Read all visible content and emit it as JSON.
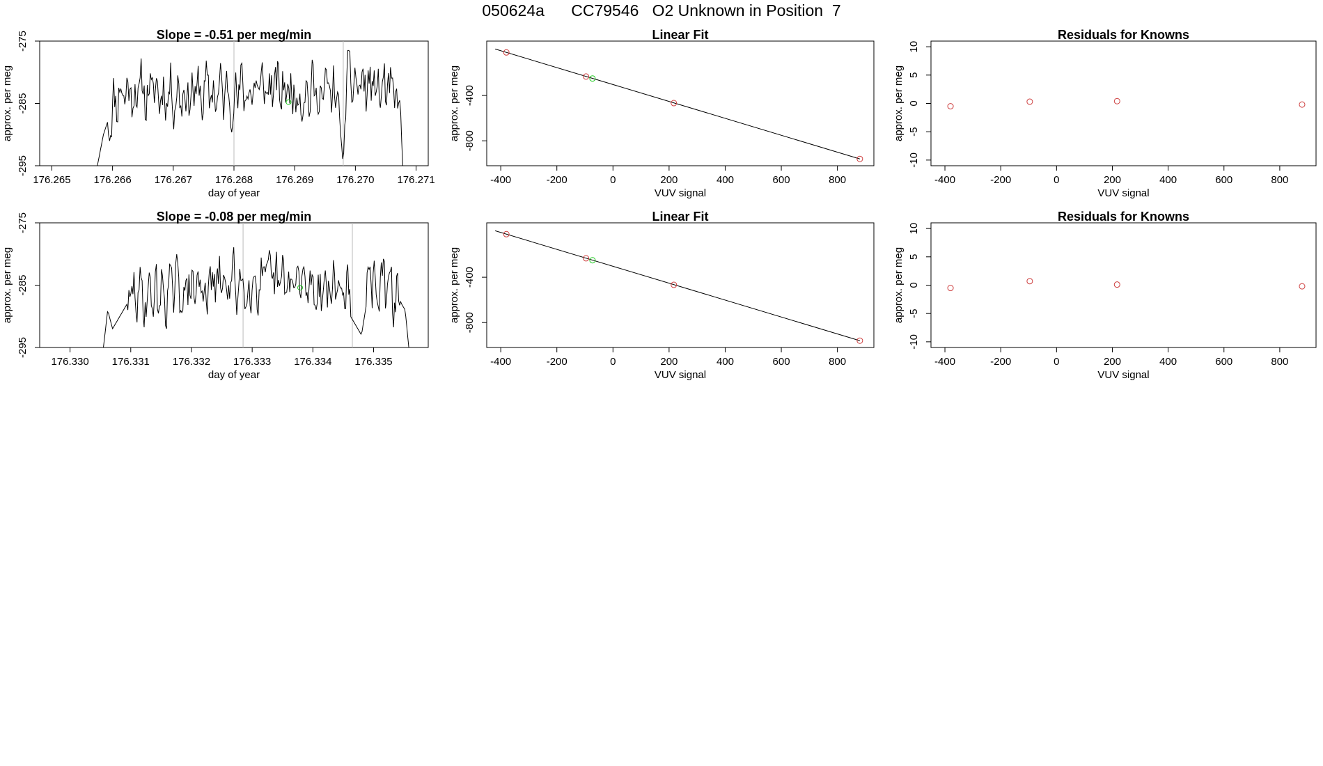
{
  "header": {
    "title": "050624a      CC79546   O2 Unknown in Position  7"
  },
  "colors": {
    "line": "#000000",
    "known": "#cd3c3c",
    "unknown": "#22cc22",
    "vline": "#bbbbbb",
    "frame": "#000000"
  },
  "chart_data": [
    {
      "type": "line",
      "title": "Slope =  -0.51  per meg/min",
      "xlabel": "day of year",
      "ylabel": "approx. per meg",
      "xlim": [
        176.2648,
        176.2712
      ],
      "ylim": [
        -295,
        -275
      ],
      "xticks": [
        176.265,
        176.266,
        176.267,
        176.268,
        176.269,
        176.27,
        176.271
      ],
      "xtick_labels": [
        "176.265",
        "176.266",
        "176.267",
        "176.268",
        "176.269",
        "176.270",
        "176.271"
      ],
      "yticks": [
        -275,
        -285,
        -295
      ],
      "ytick_labels": [
        "-275",
        "-285",
        "-295"
      ],
      "vlines": [
        176.268,
        176.2698
      ],
      "marker": {
        "x": 176.2689,
        "y": -284.8
      },
      "series": [
        {
          "name": "signal",
          "x_start": 176.26575,
          "x_end": 176.27078,
          "seed": 11,
          "anchors": [
            [
              176.26575,
              -295
            ],
            [
              176.26585,
              -290
            ],
            [
              176.2659,
              -288.5
            ],
            [
              176.2661,
              -283
            ],
            [
              176.268,
              -283.5
            ],
            [
              176.2684,
              -282.5
            ],
            [
              176.2697,
              -283.5
            ],
            [
              176.26975,
              -289
            ],
            [
              176.2698,
              -295
            ],
            [
              176.26985,
              -281.5
            ],
            [
              176.2705,
              -283
            ],
            [
              176.2707,
              -285
            ],
            [
              176.27075,
              -288
            ],
            [
              176.27078,
              -295
            ]
          ]
        }
      ]
    },
    {
      "type": "scatter",
      "title": "Linear Fit",
      "xlabel": "VUV signal",
      "ylabel": "approx. per meg",
      "xlim": [
        -450,
        930
      ],
      "ylim": [
        -1020,
        80
      ],
      "xticks": [
        -400,
        -200,
        0,
        200,
        400,
        600,
        800
      ],
      "xtick_labels": [
        "-400",
        "-200",
        "0",
        "200",
        "400",
        "600",
        "800"
      ],
      "yticks": [
        -400,
        -800
      ],
      "ytick_labels": [
        "-400",
        "-800"
      ],
      "fit_line": {
        "x": [
          -420,
          880
        ],
        "y": [
          10,
          -960
        ]
      },
      "known_points": {
        "x": [
          -380,
          -96,
          217,
          880
        ],
        "y": [
          -20,
          -233,
          -467,
          -960
        ]
      },
      "unknown_points": {
        "x": [
          -73
        ],
        "y": [
          -250
        ]
      }
    },
    {
      "type": "scatter",
      "title": "Residuals for Knowns",
      "xlabel": "VUV signal",
      "ylabel": "approx. per meg",
      "xlim": [
        -450,
        930
      ],
      "ylim": [
        -11,
        11
      ],
      "xticks": [
        -400,
        -200,
        0,
        200,
        400,
        600,
        800
      ],
      "xtick_labels": [
        "-400",
        "-200",
        "0",
        "200",
        "400",
        "600",
        "800"
      ],
      "yticks": [
        10,
        5,
        0,
        -5,
        -10
      ],
      "ytick_labels": [
        "10",
        "5",
        "0",
        "-5",
        "-10"
      ],
      "points": {
        "x": [
          -380,
          -96,
          217,
          880
        ],
        "y": [
          -0.5,
          0.3,
          0.4,
          -0.2
        ]
      }
    },
    {
      "type": "line",
      "title": "Slope =  -0.08  per meg/min",
      "xlabel": "day of year",
      "ylabel": "approx. per meg",
      "xlim": [
        176.3295,
        176.3359
      ],
      "ylim": [
        -295,
        -275
      ],
      "xticks": [
        176.33,
        176.331,
        176.332,
        176.333,
        176.334,
        176.335
      ],
      "xtick_labels": [
        "176.330",
        "176.331",
        "176.332",
        "176.333",
        "176.334",
        "176.335"
      ],
      "yticks": [
        -275,
        -285,
        -295
      ],
      "ytick_labels": [
        "-275",
        "-285",
        "-295"
      ],
      "vlines": [
        176.33285,
        176.33465
      ],
      "marker": {
        "x": 176.33379,
        "y": -285.4
      },
      "series": [
        {
          "name": "signal",
          "x_start": 176.33055,
          "x_end": 176.33558,
          "seed": 29,
          "anchors": [
            [
              176.33055,
              -295
            ],
            [
              176.33062,
              -289
            ],
            [
              176.3307,
              -292
            ],
            [
              176.331,
              -287
            ],
            [
              176.33285,
              -284.5
            ],
            [
              176.3346,
              -285.5
            ],
            [
              176.33462,
              -290
            ],
            [
              176.3348,
              -293
            ],
            [
              176.33495,
              -284
            ],
            [
              176.3354,
              -287
            ],
            [
              176.33552,
              -289
            ],
            [
              176.33558,
              -295
            ]
          ]
        }
      ]
    },
    {
      "type": "scatter",
      "title": "Linear Fit",
      "xlabel": "VUV signal",
      "ylabel": "approx. per meg",
      "xlim": [
        -450,
        930
      ],
      "ylim": [
        -1020,
        80
      ],
      "xticks": [
        -400,
        -200,
        0,
        200,
        400,
        600,
        800
      ],
      "xtick_labels": [
        "-400",
        "-200",
        "0",
        "200",
        "400",
        "600",
        "800"
      ],
      "yticks": [
        -400,
        -800
      ],
      "ytick_labels": [
        "-400",
        "-800"
      ],
      "fit_line": {
        "x": [
          -420,
          880
        ],
        "y": [
          10,
          -960
        ]
      },
      "known_points": {
        "x": [
          -380,
          -96,
          217,
          880
        ],
        "y": [
          -20,
          -233,
          -467,
          -960
        ]
      },
      "unknown_points": {
        "x": [
          -73
        ],
        "y": [
          -250
        ]
      }
    },
    {
      "type": "scatter",
      "title": "Residuals for Knowns",
      "xlabel": "VUV signal",
      "ylabel": "approx. per meg",
      "xlim": [
        -450,
        930
      ],
      "ylim": [
        -11,
        11
      ],
      "xticks": [
        -400,
        -200,
        0,
        200,
        400,
        600,
        800
      ],
      "xtick_labels": [
        "-400",
        "-200",
        "0",
        "200",
        "400",
        "600",
        "800"
      ],
      "yticks": [
        10,
        5,
        0,
        -5,
        -10
      ],
      "ytick_labels": [
        "10",
        "5",
        "0",
        "-5",
        "-10"
      ],
      "points": {
        "x": [
          -380,
          -96,
          217,
          880
        ],
        "y": [
          -0.5,
          0.7,
          0.1,
          -0.2
        ]
      }
    }
  ]
}
